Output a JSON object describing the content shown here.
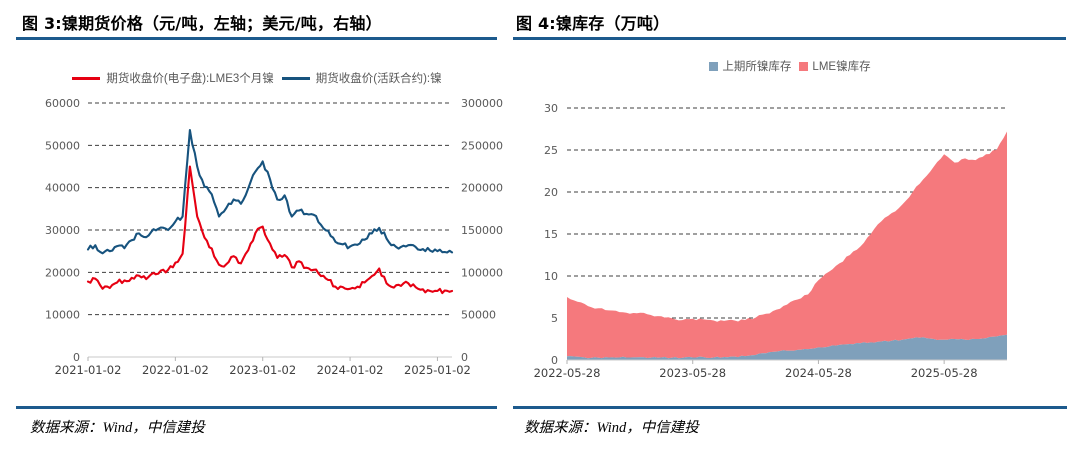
{
  "page": {
    "accent_color": "#1C5A8D",
    "left_panel": {
      "source": "数据来源：Wind，中信建投"
    },
    "right_panel": {
      "source": "数据来源：Wind，中信建投"
    }
  },
  "chart_data": [
    {
      "type": "line",
      "title": "图 3:镍期货价格（元/吨，左轴；美元/吨，右轴）",
      "xlabel": "",
      "ylabel_left": "元/吨",
      "ylabel_right": "美元/吨",
      "grid": "dashed",
      "legend_position": "top",
      "x_start_month": "2021-01",
      "x_span_months": 50,
      "x_tick_months": [
        0,
        12,
        24,
        36,
        48
      ],
      "x_tick_labels": [
        "2021-01-02",
        "2022-01-02",
        "2023-01-02",
        "2024-01-02",
        "2025-01-02"
      ],
      "left_axis": {
        "min": 0,
        "max": 60000,
        "step": 10000
      },
      "right_axis": {
        "min": 0,
        "max": 300000,
        "step": 50000
      },
      "series": [
        {
          "name": "期货收盘价(电子盘):LME3个月镍",
          "axis": "left",
          "color": "#E60012",
          "values": [
            17800,
            18500,
            16100,
            16300,
            17600,
            18100,
            18700,
            19200,
            18400,
            19900,
            20400,
            20600,
            22300,
            24400,
            45000,
            33200,
            28200,
            25600,
            21800,
            21900,
            23800,
            22100,
            25200,
            29300,
            30800,
            26800,
            23400,
            24100,
            21200,
            22600,
            21100,
            20600,
            19100,
            18200,
            16600,
            16500,
            16100,
            16600,
            17600,
            19100,
            20900,
            17400,
            16400,
            16800,
            17400,
            16500,
            16000,
            15600,
            15600,
            15700,
            15600
          ]
        },
        {
          "name": "期货收盘价(活跃合约):镍",
          "axis": "right",
          "color": "#17537E",
          "values": [
            127000,
            132000,
            122500,
            125000,
            131000,
            128500,
            138000,
            146000,
            141500,
            151000,
            153000,
            150000,
            160000,
            166000,
            268000,
            225000,
            201000,
            192000,
            166000,
            176000,
            186000,
            181000,
            199000,
            219000,
            231000,
            210000,
            186000,
            191000,
            166000,
            173000,
            169000,
            168000,
            156000,
            149000,
            136000,
            133000,
            130500,
            132500,
            138500,
            146000,
            152500,
            140000,
            132500,
            130000,
            132000,
            130000,
            127500,
            125500,
            125000,
            124000,
            123500
          ]
        }
      ]
    },
    {
      "type": "stacked-area",
      "title": "图 4:镍库存（万吨）",
      "xlabel": "",
      "ylabel": "万吨",
      "grid": "dashed",
      "legend_position": "top",
      "x_start_month": "2022-05",
      "x_span_months": 42,
      "x_tick_months": [
        0,
        12,
        24,
        36
      ],
      "x_tick_labels": [
        "2022-05-28",
        "2023-05-28",
        "2024-05-28",
        "2025-05-28"
      ],
      "y_axis": {
        "min": 0,
        "max": 30,
        "step": 5
      },
      "series": [
        {
          "name": "上期所镍库存",
          "color": "#7FA0BB",
          "values": [
            0.45,
            0.38,
            0.22,
            0.26,
            0.3,
            0.3,
            0.3,
            0.32,
            0.26,
            0.3,
            0.26,
            0.25,
            0.3,
            0.36,
            0.3,
            0.36,
            0.4,
            0.46,
            0.6,
            0.8,
            1.0,
            1.1,
            1.2,
            1.3,
            1.5,
            1.6,
            1.8,
            1.9,
            2.0,
            2.1,
            2.2,
            2.3,
            2.4,
            2.6,
            2.7,
            2.5,
            2.4,
            2.5,
            2.4,
            2.5,
            2.6,
            2.8,
            3.0
          ]
        },
        {
          "name": "LME镍库存",
          "color": "#F5797D",
          "values": [
            7.05,
            6.55,
            6.2,
            5.9,
            5.6,
            5.4,
            5.2,
            5.3,
            5.1,
            4.9,
            4.7,
            4.5,
            4.6,
            4.5,
            4.4,
            4.3,
            4.3,
            4.3,
            4.45,
            4.7,
            5.0,
            5.5,
            6.0,
            6.5,
            8.0,
            8.9,
            9.7,
            10.6,
            11.5,
            12.9,
            14.3,
            15.2,
            16.1,
            17.4,
            18.8,
            20.5,
            22.1,
            21.0,
            21.6,
            21.3,
            21.9,
            22.2,
            24.2
          ]
        }
      ]
    }
  ]
}
